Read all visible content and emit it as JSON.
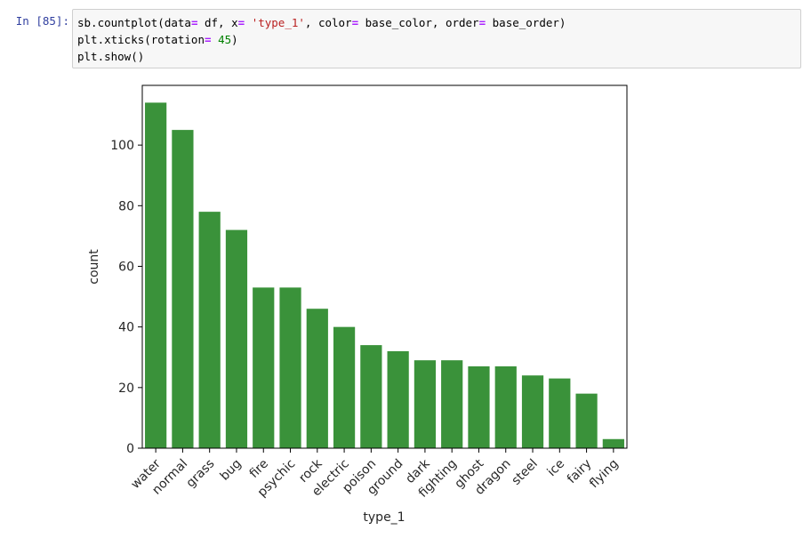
{
  "cell": {
    "prompt": "In [85]:",
    "code_lines": [
      [
        {
          "t": "sb.countplot(data"
        },
        {
          "t": "=",
          "c": "op"
        },
        {
          "t": " df, x"
        },
        {
          "t": "=",
          "c": "op"
        },
        {
          "t": " "
        },
        {
          "t": "'type_1'",
          "c": "str"
        },
        {
          "t": ", color"
        },
        {
          "t": "=",
          "c": "op"
        },
        {
          "t": " base_color, order"
        },
        {
          "t": "=",
          "c": "op"
        },
        {
          "t": " base_order)"
        }
      ],
      [
        {
          "t": "plt.xticks(rotation"
        },
        {
          "t": "=",
          "c": "op"
        },
        {
          "t": " "
        },
        {
          "t": "45",
          "c": "num"
        },
        {
          "t": ")"
        }
      ],
      [
        {
          "t": "plt.show()"
        }
      ]
    ]
  },
  "colors": {
    "bar": "#3a923a",
    "prompt": "#303f9f",
    "operator": "#aa22ff",
    "string": "#ba2121",
    "number": "#008000"
  },
  "chart_data": {
    "type": "bar",
    "categories": [
      "water",
      "normal",
      "grass",
      "bug",
      "fire",
      "psychic",
      "rock",
      "electric",
      "poison",
      "ground",
      "dark",
      "fighting",
      "ghost",
      "dragon",
      "steel",
      "ice",
      "fairy",
      "flying"
    ],
    "values": [
      114,
      105,
      78,
      72,
      53,
      53,
      46,
      40,
      34,
      32,
      29,
      29,
      27,
      27,
      24,
      23,
      18,
      3
    ],
    "xlabel": "type_1",
    "ylabel": "count",
    "yticks": [
      0,
      20,
      40,
      60,
      80,
      100
    ],
    "ylim": [
      0,
      119.7
    ],
    "xtick_rotation": 45,
    "grid": false
  }
}
